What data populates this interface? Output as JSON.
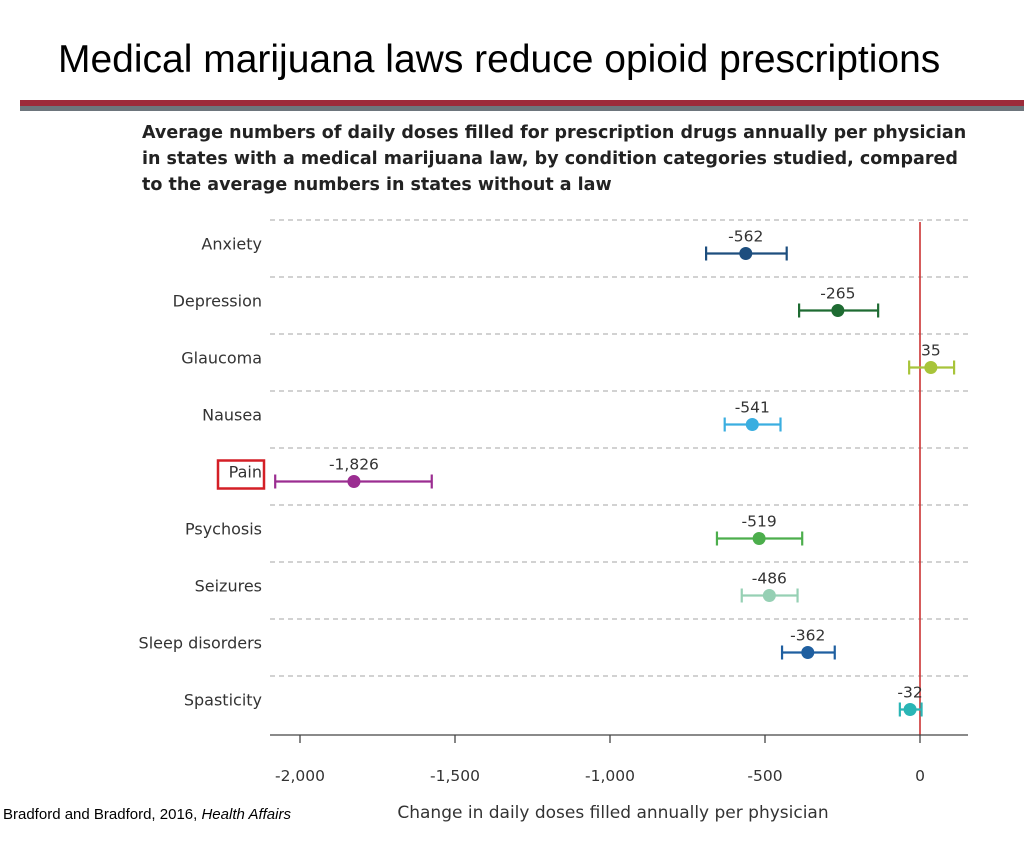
{
  "slide": {
    "title": "Medical marijuana laws reduce opioid prescriptions",
    "citation_prefix": "Bradford and Bradford, 2016, ",
    "citation_journal": "Health Affairs"
  },
  "colors": {
    "rule_top": "#9c2a3a",
    "rule_bottom": "#6d757c",
    "zero_line": "#cc3333",
    "highlight_box": "#d41f26"
  },
  "chart_data": {
    "type": "scatter",
    "title": "Average numbers of daily doses filled for prescription drugs annually per physician in states with a medical marijuana law, by condition categories studied, compared to the average numbers in states without a law",
    "xlabel": "Change in daily doses filled annually per physician",
    "ylabel": "",
    "xlim": [
      -2100,
      150
    ],
    "xticks": [
      -2000,
      -1500,
      -1000,
      -500,
      0
    ],
    "xtick_labels": [
      "-2,000",
      "-1,500",
      "-1,000",
      "-500",
      "0"
    ],
    "reference_line_x": 0,
    "grid": "horizontal dashed separators",
    "highlighted_category": "Pain",
    "categories": [
      {
        "name": "Anxiety",
        "value": -562,
        "label": "-562",
        "ci_low": -690,
        "ci_high": -430,
        "color": "#1d4e7e"
      },
      {
        "name": "Depression",
        "value": -265,
        "label": "-265",
        "ci_low": -390,
        "ci_high": -135,
        "color": "#1e6b32"
      },
      {
        "name": "Glaucoma",
        "value": 35,
        "label": "35",
        "ci_low": -35,
        "ci_high": 110,
        "color": "#a8c43a"
      },
      {
        "name": "Nausea",
        "value": -541,
        "label": "-541",
        "ci_low": -630,
        "ci_high": -450,
        "color": "#3aaee0"
      },
      {
        "name": "Pain",
        "value": -1826,
        "label": "-1,826",
        "ci_low": -2080,
        "ci_high": -1575,
        "color": "#9b2d91"
      },
      {
        "name": "Psychosis",
        "value": -519,
        "label": "-519",
        "ci_low": -655,
        "ci_high": -380,
        "color": "#4cae4c"
      },
      {
        "name": "Seizures",
        "value": -486,
        "label": "-486",
        "ci_low": -575,
        "ci_high": -395,
        "color": "#96d0b4"
      },
      {
        "name": "Sleep disorders",
        "value": -362,
        "label": "-362",
        "ci_low": -445,
        "ci_high": -275,
        "color": "#1f5fa0"
      },
      {
        "name": "Spasticity",
        "value": -32,
        "label": "-32",
        "ci_low": -65,
        "ci_high": 5,
        "color": "#2ab5b5"
      }
    ]
  }
}
